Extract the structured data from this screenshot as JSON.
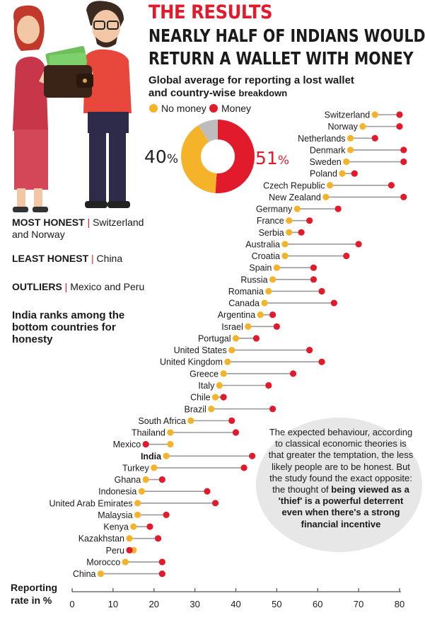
{
  "header": {
    "kicker": "THE RESULTS",
    "headline_line1": "NEARLY HALF OF INDIANS WOULD",
    "headline_line2": "RETURN A WALLET WITH MONEY",
    "subhead_line1": "Global average for reporting a lost wallet",
    "subhead_line2_main": "and country-wise",
    "subhead_line2_small": "breakdown"
  },
  "legend": {
    "no_money": {
      "label": "No money",
      "color": "#f5b32a"
    },
    "money": {
      "label": "Money",
      "color": "#e11b2b"
    }
  },
  "donut": {
    "no_money_value": 40,
    "no_money_text": "40",
    "money_value": 51,
    "money_text": "51",
    "unit": "%",
    "remainder_color": "#bdbdbd"
  },
  "facts": {
    "most_label": "MOST HONEST",
    "most_value": "Switzerland and Norway",
    "least_label": "LEAST HONEST",
    "least_value": "China",
    "outliers_label": "OUTLIERS",
    "outliers_value": "Mexico and Peru",
    "india_text": "India ranks among the bottom countries for honesty"
  },
  "note": {
    "plain": "The expected behaviour, according to classical economic theories is that greater the temptation, the less likely people are to be honest. But the study found the exact opposite: the thought of",
    "bold": "being viewed as a 'thief' is a powerful deterrent even when there's a strong financial incentive"
  },
  "axis": {
    "label_line1": "Reporting",
    "label_line2": "rate in %"
  },
  "chart_data": {
    "type": "scatter",
    "subtype": "dumbbell",
    "xlabel": "Reporting rate in %",
    "xlim": [
      0,
      80
    ],
    "xticks": [
      0,
      10,
      20,
      30,
      40,
      50,
      60,
      70,
      80
    ],
    "series": [
      {
        "name": "No money",
        "color": "#f5b32a"
      },
      {
        "name": "Money",
        "color": "#e11b2b"
      }
    ],
    "categories": [
      "Switzerland",
      "Norway",
      "Netherlands",
      "Denmark",
      "Sweden",
      "Poland",
      "Czech Republic",
      "New Zealand",
      "Germany",
      "France",
      "Serbia",
      "Australia",
      "Croatia",
      "Spain",
      "Russia",
      "Romania",
      "Canada",
      "Argentina",
      "Israel",
      "Portugal",
      "United States",
      "United Kingdom",
      "Greece",
      "Italy",
      "Chile",
      "Brazil",
      "South Africa",
      "Thailand",
      "Mexico",
      "India",
      "Turkey",
      "Ghana",
      "Indonesia",
      "United Arab Emirates",
      "Malaysia",
      "Kenya",
      "Kazakhstan",
      "Peru",
      "Morocco",
      "China"
    ],
    "no_money": [
      74,
      71,
      68,
      68,
      67,
      66,
      63,
      62,
      55,
      53,
      53,
      52,
      52,
      50,
      49,
      48,
      47,
      46,
      43,
      40,
      39,
      38,
      37,
      36,
      35,
      34,
      29,
      24,
      24,
      23,
      20,
      18,
      17,
      16,
      16,
      15,
      14,
      15,
      13,
      7
    ],
    "money": [
      80,
      80,
      74,
      81,
      81,
      69,
      78,
      81,
      65,
      58,
      56,
      70,
      67,
      59,
      59,
      61,
      64,
      49,
      50,
      45,
      58,
      61,
      54,
      48,
      37,
      49,
      39,
      40,
      18,
      44,
      42,
      22,
      33,
      35,
      23,
      19,
      21,
      14,
      22,
      22
    ],
    "highlight": "India"
  }
}
